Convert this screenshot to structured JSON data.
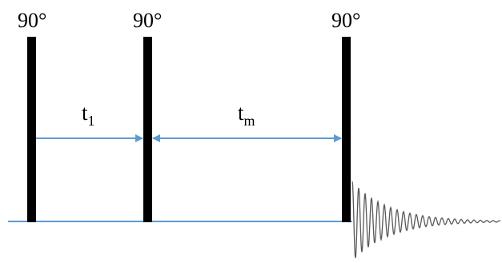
{
  "diagram": {
    "pulses": [
      {
        "id": "pulse-1",
        "label": "90°"
      },
      {
        "id": "pulse-2",
        "label": "90°"
      },
      {
        "id": "pulse-3",
        "label": "90°"
      }
    ],
    "delays": [
      {
        "id": "delay-t1",
        "symbol": "t",
        "subscript": "1"
      },
      {
        "id": "delay-tm",
        "symbol": "t",
        "subscript": "m"
      }
    ],
    "colors": {
      "pulse": "#000000",
      "arrow": "#5b9bd5",
      "baseline": "#5b9bd5",
      "fid": "#595959"
    }
  }
}
